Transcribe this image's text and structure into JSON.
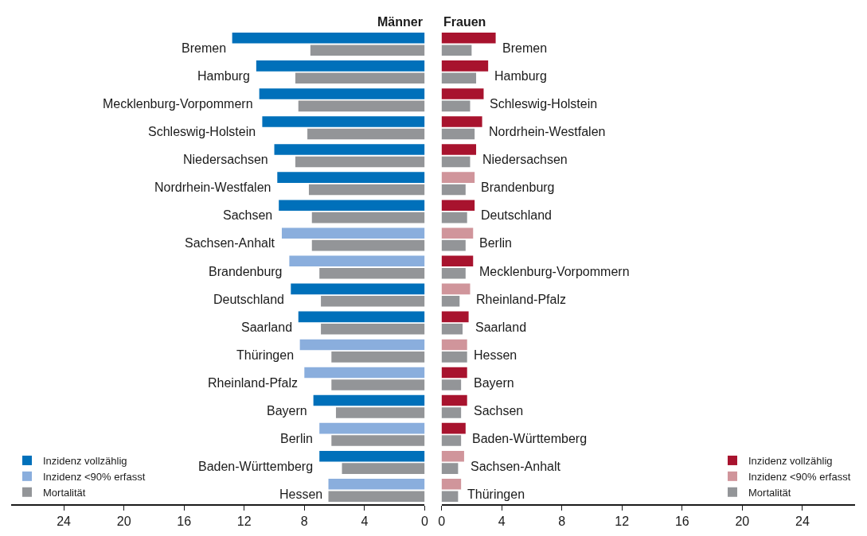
{
  "chart_data": [
    {
      "type": "bar",
      "orientation": "horizontal",
      "title": "Männer",
      "categories": [
        "Bremen",
        "Hamburg",
        "Mecklenburg-Vorpommern",
        "Schleswig-Holstein",
        "Niedersachsen",
        "Nordrhein-Westfalen",
        "Sachsen",
        "Sachsen-Anhalt",
        "Brandenburg",
        "Deutschland",
        "Saarland",
        "Thüringen",
        "Rheinland-Pfalz",
        "Bayern",
        "Berlin",
        "Baden-Württemberg",
        "Hessen"
      ],
      "series": [
        {
          "name": "Inzidenz vollzählig",
          "color": "#0070ba",
          "values": [
            12.8,
            11.2,
            11.0,
            10.8,
            10.0,
            9.8,
            9.7,
            null,
            null,
            8.9,
            8.4,
            null,
            null,
            7.4,
            null,
            7.0,
            null
          ]
        },
        {
          "name": "Inzidenz <90% erfasst",
          "color": "#8aaedd",
          "values": [
            null,
            null,
            null,
            null,
            null,
            null,
            null,
            9.5,
            9.0,
            null,
            null,
            8.3,
            8.0,
            null,
            7.0,
            null,
            6.4
          ]
        },
        {
          "name": "Mortalität",
          "color": "#939598",
          "values": [
            7.6,
            8.6,
            8.4,
            7.8,
            8.6,
            7.7,
            7.5,
            7.5,
            7.0,
            6.9,
            6.9,
            6.2,
            6.2,
            5.9,
            6.2,
            5.5,
            6.4
          ]
        }
      ],
      "xlim": [
        27.5,
        0
      ],
      "xticks": [
        24,
        20,
        16,
        12,
        8,
        4,
        0
      ],
      "legend": "bottom left"
    },
    {
      "type": "bar",
      "orientation": "horizontal",
      "title": "Frauen",
      "categories": [
        "Bremen",
        "Hamburg",
        "Schleswig-Holstein",
        "Nordrhein-Westfalen",
        "Niedersachsen",
        "Brandenburg",
        "Deutschland",
        "Berlin",
        "Mecklenburg-Vorpommern",
        "Rheinland-Pfalz",
        "Saarland",
        "Hessen",
        "Bayern",
        "Sachsen",
        "Baden-Württemberg",
        "Sachsen-Anhalt",
        "Thüringen"
      ],
      "series": [
        {
          "name": "Inzidenz vollzählig",
          "color": "#a8132e",
          "values": [
            3.6,
            3.1,
            2.8,
            2.7,
            2.3,
            null,
            2.2,
            null,
            2.1,
            null,
            1.8,
            null,
            1.7,
            1.7,
            1.6,
            null,
            null
          ]
        },
        {
          "name": "Inzidenz <90% erfasst",
          "color": "#d0959b",
          "values": [
            null,
            null,
            null,
            null,
            null,
            2.2,
            null,
            2.1,
            null,
            1.9,
            null,
            1.7,
            null,
            null,
            null,
            1.5,
            1.3
          ]
        },
        {
          "name": "Mortalität",
          "color": "#939598",
          "values": [
            2.0,
            2.3,
            1.9,
            2.2,
            1.9,
            1.6,
            1.7,
            1.6,
            1.6,
            1.2,
            1.4,
            1.7,
            1.3,
            1.3,
            1.3,
            1.1,
            1.1
          ]
        }
      ],
      "xlim": [
        0,
        27.5
      ],
      "xticks": [
        0,
        4,
        8,
        12,
        16,
        20,
        24
      ],
      "legend": "bottom right"
    }
  ]
}
